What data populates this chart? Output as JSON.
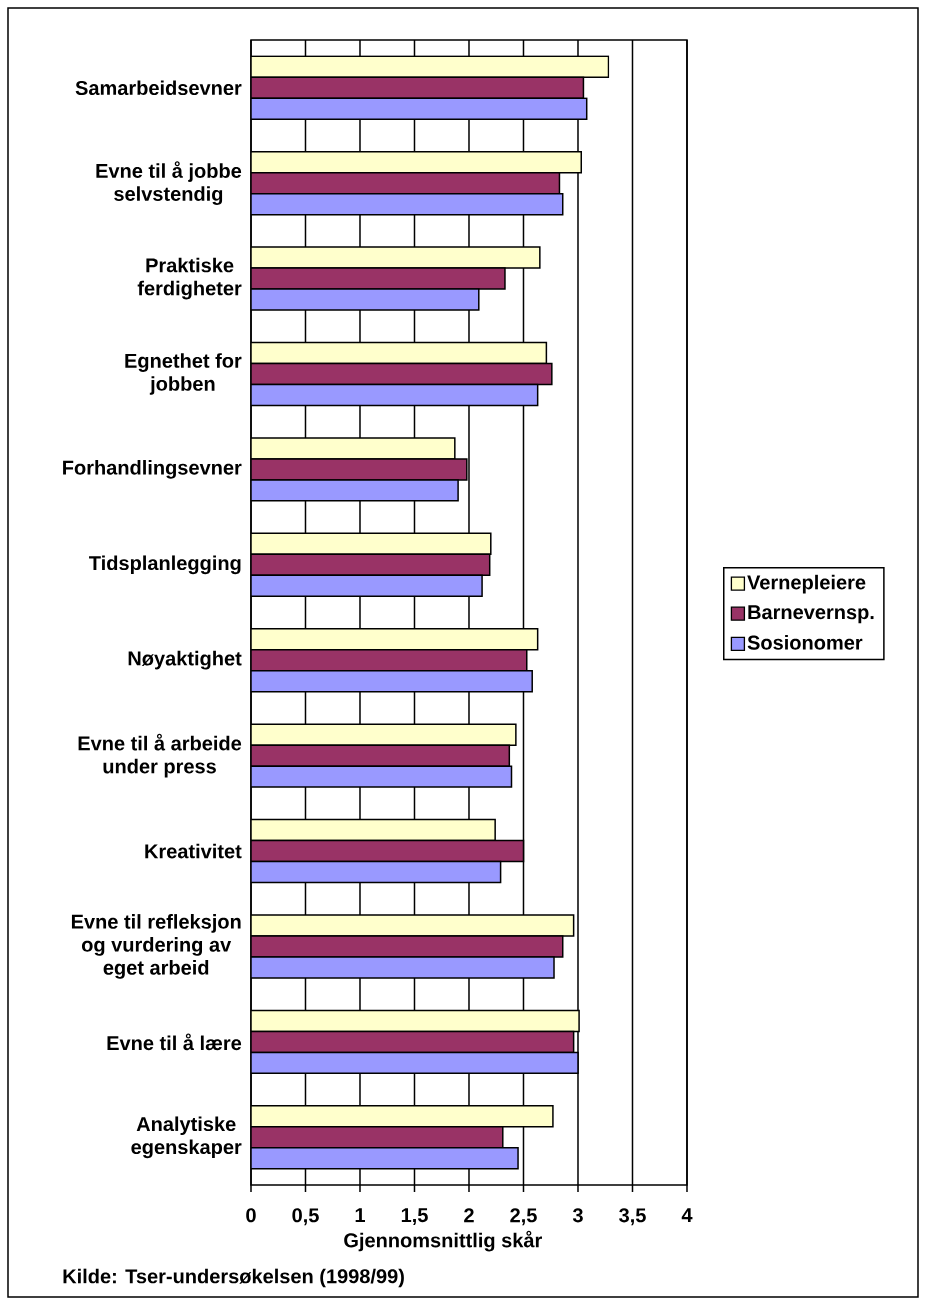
{
  "chart_data": {
    "type": "bar",
    "orientation": "horizontal",
    "categories": [
      "Samarbeidsevner",
      "Evne til å jobbe selvstendig",
      "Praktiske ferdigheter",
      "Egnethet for jobben",
      "Forhandlingsevner",
      "Tidsplanlegging",
      "Nøyaktighet",
      "Evne til å arbeide under press",
      "Kreativitet",
      "Evne til refleksjon og vurdering av eget arbeid",
      "Evne til å lære",
      "Analytiske egenskaper"
    ],
    "series": [
      {
        "name": "Vernepleiere",
        "color": "#ffffcc",
        "values": [
          3.28,
          3.03,
          2.65,
          2.71,
          1.87,
          2.2,
          2.63,
          2.43,
          2.24,
          2.96,
          3.01,
          2.77
        ]
      },
      {
        "name": "Barnevernsp.",
        "color": "#993366",
        "values": [
          3.05,
          2.83,
          2.33,
          2.76,
          1.98,
          2.19,
          2.53,
          2.37,
          2.5,
          2.86,
          2.96,
          2.31
        ]
      },
      {
        "name": "Sosionomer",
        "color": "#9999ff",
        "values": [
          3.08,
          2.86,
          2.09,
          2.63,
          1.9,
          2.12,
          2.58,
          2.39,
          2.29,
          2.78,
          3.0,
          2.45
        ]
      }
    ],
    "xlabel": "Gjennomsnittlig skår",
    "xlim": [
      0,
      4
    ],
    "xticks": [
      0,
      {
        "value": 0.5,
        "label": "0,5"
      },
      1,
      {
        "value": 1.5,
        "label": "1,5"
      },
      2,
      {
        "value": 2.5,
        "label": "2,5"
      },
      3,
      {
        "value": 3.5,
        "label": "3,5"
      },
      4
    ],
    "grid": "x",
    "legend": "right",
    "annotations": [
      "Kilde: Tser-undersøkelsen (1998/99)"
    ]
  }
}
